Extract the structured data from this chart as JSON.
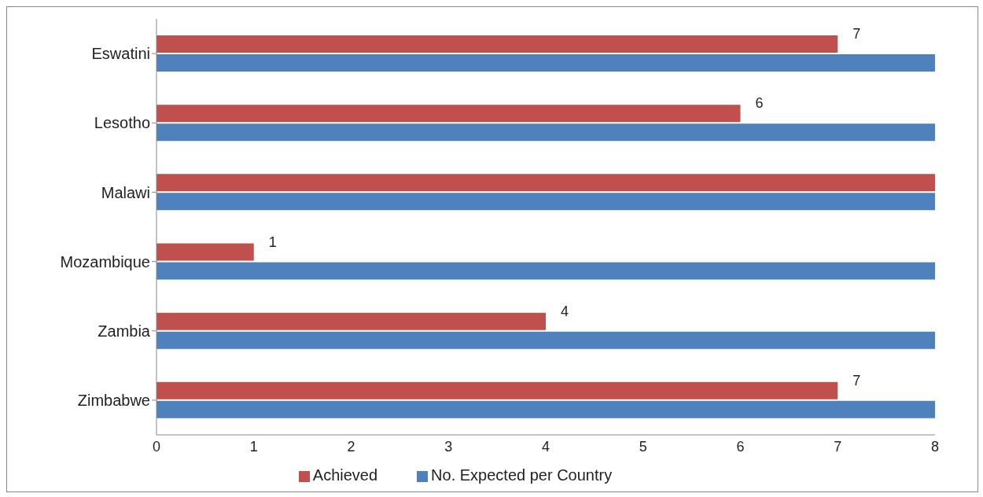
{
  "chart_data": {
    "type": "bar",
    "orientation": "horizontal",
    "categories": [
      "Eswatini",
      "Lesotho",
      "Malawi",
      "Mozambique",
      "Zambia",
      "Zimbabwe"
    ],
    "series": [
      {
        "name": "Achieved",
        "color": "#c0504d",
        "values": [
          7,
          6,
          8,
          1,
          4,
          7
        ],
        "value_labels": [
          "7",
          "6",
          null,
          "1",
          "4",
          "7"
        ]
      },
      {
        "name": "No. Expected per Country",
        "color": "#4f81bd",
        "values": [
          8,
          8,
          8,
          8,
          8,
          8
        ]
      }
    ],
    "xlim": [
      0,
      8
    ],
    "xticks": [
      0,
      1,
      2,
      3,
      4,
      5,
      6,
      7,
      8
    ],
    "legend": "bottom"
  }
}
